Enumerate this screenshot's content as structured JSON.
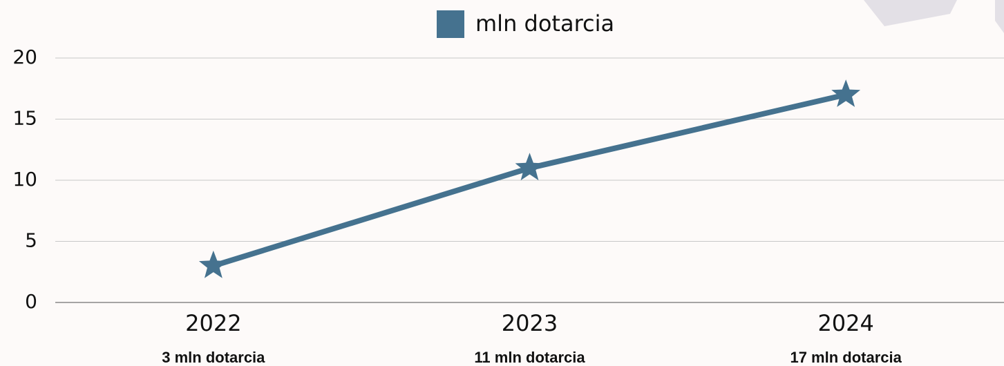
{
  "chart_data": {
    "type": "line",
    "categories": [
      "2022",
      "2023",
      "2024"
    ],
    "series": [
      {
        "name": "mln dotarcia",
        "color": "#45728f",
        "values": [
          3,
          11,
          17
        ]
      }
    ],
    "annotations": [
      "3 mln dotarcia",
      "11 mln dotarcia",
      "17 mln dotarcia"
    ],
    "ylim": [
      0,
      20
    ],
    "yticks": [
      0,
      5,
      10,
      15,
      20
    ],
    "grid": true,
    "legend": "top",
    "marker": "star"
  }
}
